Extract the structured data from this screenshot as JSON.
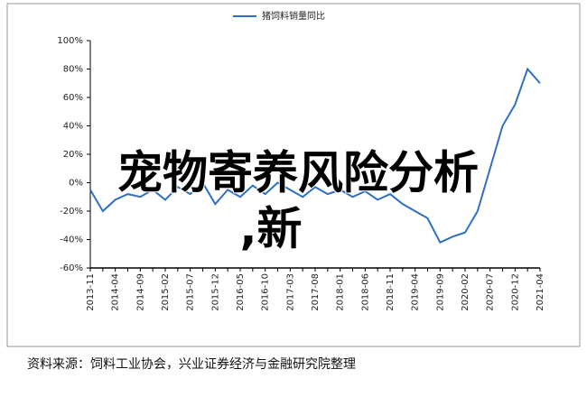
{
  "chart_data": {
    "type": "line",
    "legend_label": "猪饲料销量同比",
    "categories": [
      "2013-11",
      null,
      "2014-04",
      null,
      "2014-09",
      null,
      "2015-02",
      null,
      "2015-07",
      null,
      "2015-12",
      null,
      "2016-05",
      null,
      "2016-10",
      null,
      "2017-03",
      null,
      "2017-08",
      null,
      "2018-01",
      null,
      "2018-06",
      null,
      "2018-11",
      null,
      "2019-04",
      null,
      "2019-09",
      null,
      "2020-02",
      null,
      "2020-07",
      null,
      "2020-12",
      null,
      "2021-04"
    ],
    "series": [
      {
        "name": "猪饲料销量同比",
        "color": "#2f6fc6",
        "values": [
          -5,
          -20,
          -12,
          -8,
          -10,
          -5,
          -12,
          -3,
          -8,
          0,
          -15,
          -5,
          -10,
          -2,
          -8,
          0,
          -5,
          -10,
          -3,
          -8,
          -5,
          -10,
          -6,
          -12,
          -8,
          -15,
          -20,
          -25,
          -42,
          -38,
          -35,
          -20,
          10,
          40,
          55,
          80,
          70
        ]
      }
    ],
    "ylim": [
      -60,
      100
    ],
    "yticks": [
      {
        "value": -60,
        "label": "-60%"
      },
      {
        "value": -40,
        "label": "-40%"
      },
      {
        "value": -20,
        "label": "-20%"
      },
      {
        "value": 0,
        "label": "0%"
      },
      {
        "value": 20,
        "label": "20%"
      },
      {
        "value": 40,
        "label": "40%"
      },
      {
        "value": 60,
        "label": "60%"
      },
      {
        "value": 80,
        "label": "80%"
      },
      {
        "value": 100,
        "label": "100%"
      }
    ],
    "source": "资料来源：饲料工业协会，兴业证券经济与金融研究院整理"
  },
  "overlay_lines": [
    "宠物寄养风险分析",
    ",新"
  ]
}
